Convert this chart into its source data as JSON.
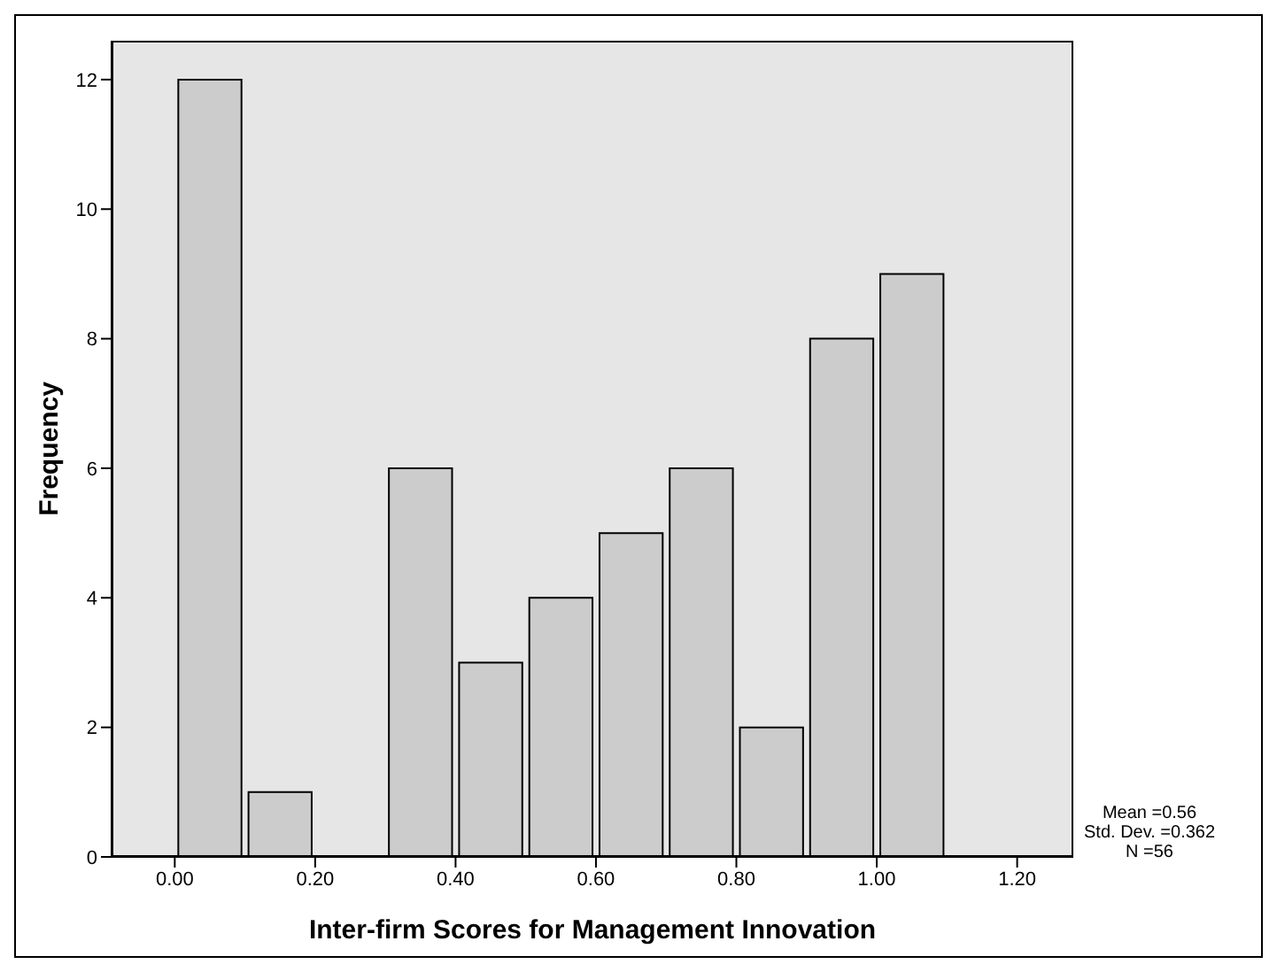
{
  "chart_data": {
    "type": "histogram",
    "xlabel": "Inter-firm Scores for Management Innovation",
    "ylabel": "Frequency",
    "bins": [
      0,
      0.1,
      0.2,
      0.3,
      0.4,
      0.5,
      0.6,
      0.7,
      0.8,
      0.9,
      1.0,
      1.1
    ],
    "values": [
      12,
      1,
      0,
      6,
      3,
      4,
      5,
      6,
      2,
      8,
      9
    ],
    "color": "#cccccc",
    "xlim": [
      -0.09,
      1.28
    ],
    "xticks": [
      {
        "value": 0,
        "label": "0.00"
      },
      {
        "value": 0.2,
        "label": "0.20"
      },
      {
        "value": 0.4,
        "label": "0.40"
      },
      {
        "value": 0.6,
        "label": "0.60"
      },
      {
        "value": 0.8,
        "label": "0.80"
      },
      {
        "value": 1.0,
        "label": "1.00"
      },
      {
        "value": 1.2,
        "label": "1.20"
      }
    ],
    "ylim": [
      0,
      12.6
    ],
    "yticks": [
      0,
      2,
      4,
      6,
      8,
      10,
      12
    ],
    "annotations": [
      "Mean =0.56",
      "Std. Dev. =0.362",
      "N =56"
    ]
  }
}
